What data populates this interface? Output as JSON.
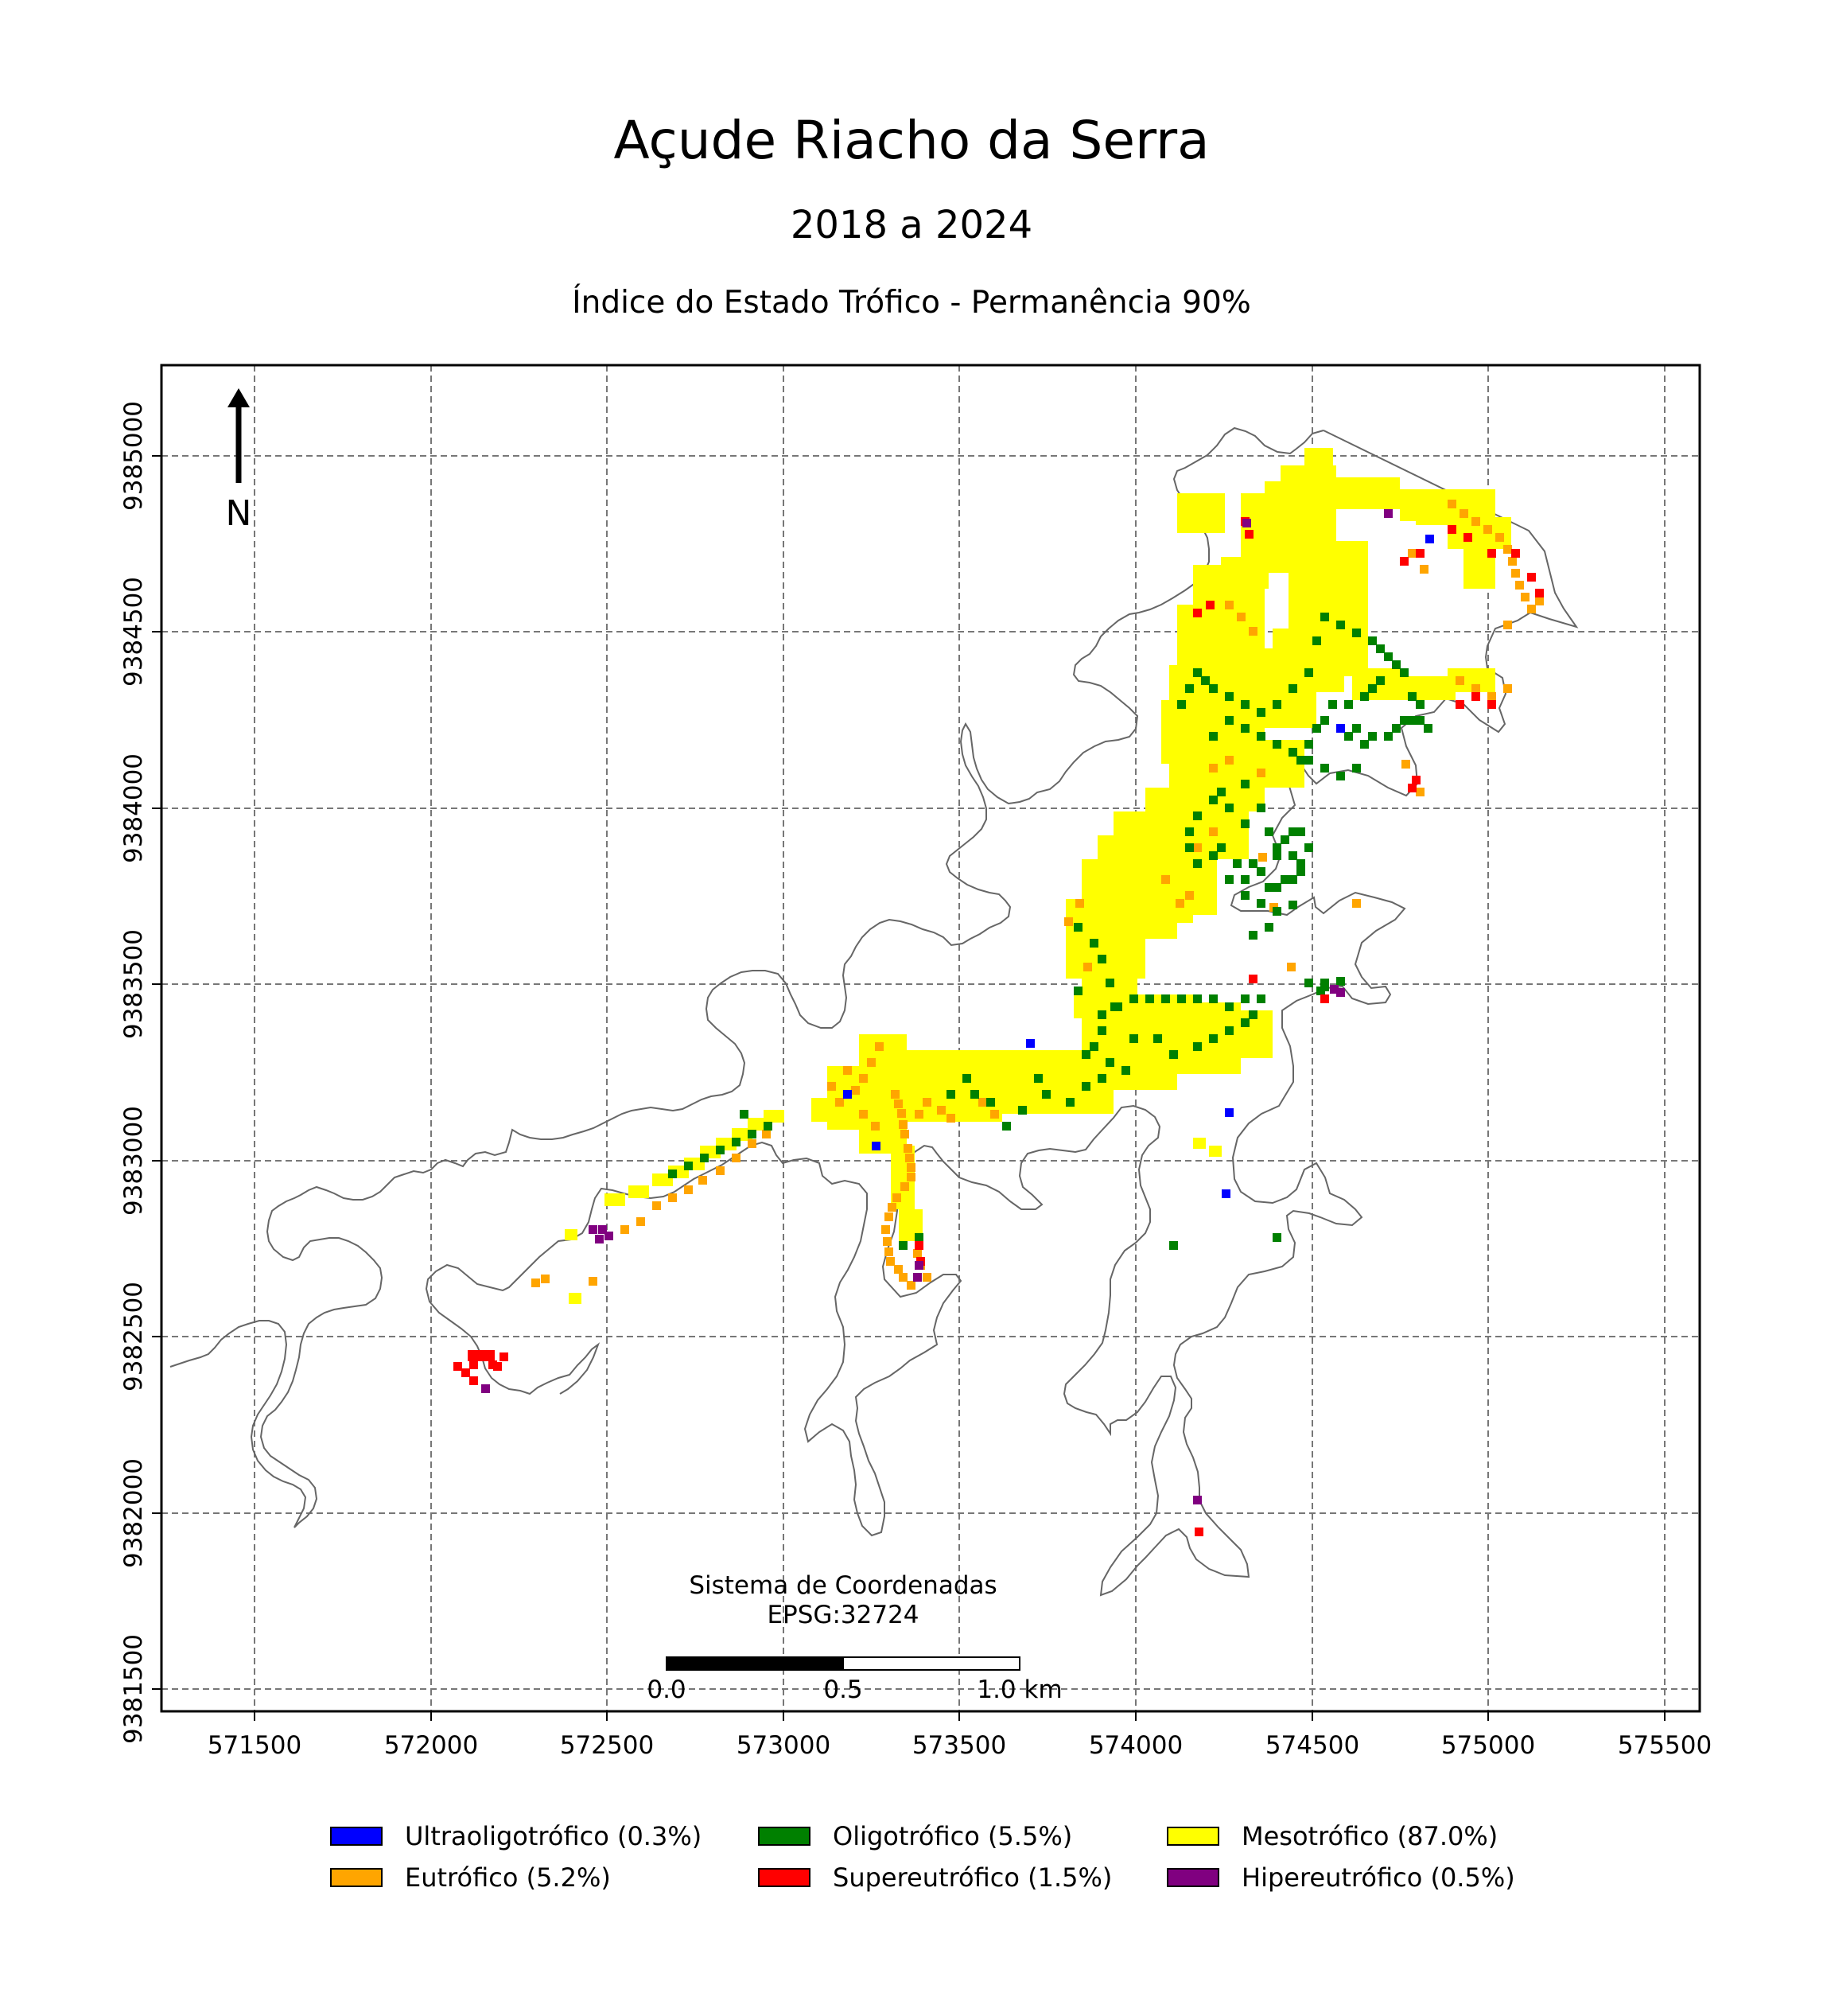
{
  "title": "Açude Riacho da Serra",
  "subtitle": "2018 a 2024",
  "index_title": "Índice do Estado Trófico - Permanência 90%",
  "north_label": "N",
  "crs_label_line1": "Sistema de Coordenadas",
  "crs_label_line2": "EPSG:32724",
  "scalebar_labels": [
    "0.0",
    "0.5",
    "1.0 km"
  ],
  "x_ticks": [
    "571500",
    "572000",
    "572500",
    "573000",
    "573500",
    "574000",
    "574500",
    "575000",
    "575500"
  ],
  "y_ticks": [
    "9381500",
    "9382000",
    "9382500",
    "9383000",
    "9383500",
    "9384000",
    "9384500",
    "9385000"
  ],
  "colors": {
    "ultraoligotrofico": "#0000ff",
    "oligotrofico": "#008000",
    "mesotrofico": "#ffff00",
    "eutrofico": "#ffa500",
    "supereutrofico": "#ff0000",
    "hipereutrofico": "#800080",
    "outline": "#555555"
  },
  "legend": [
    {
      "label": "Ultraoligotrófico (0.3%)",
      "color": "#0000ff"
    },
    {
      "label": "Oligotrófico (5.5%)",
      "color": "#008000"
    },
    {
      "label": "Mesotrófico (87.0%)",
      "color": "#ffff00"
    },
    {
      "label": "Eutrófico (5.2%)",
      "color": "#ffa500"
    },
    {
      "label": "Supereutrófico (1.5%)",
      "color": "#ff0000"
    },
    {
      "label": "Hipereutrófico (0.5%)",
      "color": "#800080"
    }
  ]
}
